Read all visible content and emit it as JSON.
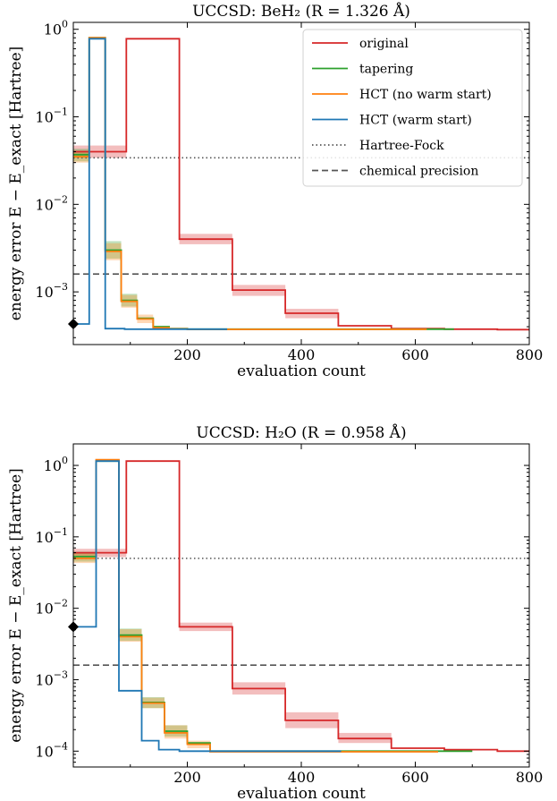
{
  "chart_data": [
    {
      "type": "line",
      "title": "UCCSD: BeH₂ (R = 1.326 Å)",
      "xlabel": "evaluation count",
      "ylabel": "energy error E − E_exact [Hartree]",
      "yscale": "log",
      "xlim": [
        0,
        800
      ],
      "ylim": [
        0.00025,
        1.2
      ],
      "x_ticks": [
        "200",
        "400",
        "600",
        "800"
      ],
      "y_ticks": [
        {
          "value": 1,
          "base": "10",
          "exp": "0"
        },
        {
          "value": 0.1,
          "base": "10",
          "exp": "−1"
        },
        {
          "value": 0.01,
          "base": "10",
          "exp": "−2"
        },
        {
          "value": 0.001,
          "base": "10",
          "exp": "−3"
        }
      ],
      "grid": false,
      "legend_position": "top-right",
      "reference_lines": [
        {
          "name": "Hartree-Fock",
          "value": 0.034,
          "style": "dotted",
          "color": "#555555"
        },
        {
          "name": "chemical precision",
          "value": 0.0016,
          "style": "dashed",
          "color": "#555555"
        }
      ],
      "start_marker": {
        "x": 0,
        "y": 0.00043
      },
      "series": [
        {
          "name": "original",
          "color": "#d62728",
          "x": [
            0,
            93,
            93,
            186,
            186,
            279,
            279,
            372,
            372,
            465,
            465,
            558,
            558,
            651,
            651,
            744,
            744,
            800
          ],
          "y": [
            0.04,
            0.04,
            0.78,
            0.78,
            0.004,
            0.004,
            0.00105,
            0.00105,
            0.00057,
            0.00057,
            0.00041,
            0.00041,
            0.00038,
            0.00038,
            0.000375,
            0.000375,
            0.00037,
            0.00037
          ],
          "band": [
            [
              0,
              93,
              0.034,
              0.047
            ],
            [
              186,
              279,
              0.0035,
              0.0046
            ],
            [
              279,
              372,
              0.0009,
              0.0012
            ],
            [
              372,
              465,
              0.0005,
              0.00064
            ]
          ]
        },
        {
          "name": "tapering",
          "color": "#2ca02c",
          "x": [
            0,
            28,
            28,
            56,
            56,
            84,
            84,
            112,
            112,
            140,
            140,
            168,
            168,
            200,
            200,
            668
          ],
          "y": [
            0.037,
            0.037,
            0.8,
            0.8,
            0.003,
            0.003,
            0.0008,
            0.0008,
            0.0005,
            0.0005,
            0.0004,
            0.0004,
            0.00038,
            0.00038,
            0.000375,
            0.000375
          ],
          "band": [
            [
              0,
              28,
              0.031,
              0.043
            ],
            [
              56,
              84,
              0.0024,
              0.0038
            ],
            [
              84,
              112,
              0.00068,
              0.00095
            ]
          ]
        },
        {
          "name": "HCT (no warm start)",
          "color": "#ff7f0e",
          "x": [
            0,
            28,
            28,
            56,
            56,
            84,
            84,
            112,
            112,
            140,
            140,
            168,
            168,
            200,
            200,
            620
          ],
          "y": [
            0.035,
            0.035,
            0.8,
            0.8,
            0.0029,
            0.0029,
            0.00078,
            0.00078,
            0.00049,
            0.00049,
            0.00039,
            0.00039,
            0.000378,
            0.000378,
            0.000373,
            0.000373
          ],
          "band": [
            [
              0,
              28,
              0.03,
              0.041
            ],
            [
              56,
              84,
              0.0023,
              0.0036
            ],
            [
              84,
              112,
              0.00066,
              0.00092
            ],
            [
              112,
              140,
              0.00044,
              0.00055
            ]
          ]
        },
        {
          "name": "HCT (warm start)",
          "color": "#1f77b4",
          "x": [
            0,
            28,
            28,
            56,
            56,
            90,
            90,
            270
          ],
          "y": [
            0.00043,
            0.00043,
            0.78,
            0.78,
            0.00038,
            0.00038,
            0.000375,
            0.000375
          ]
        }
      ]
    },
    {
      "type": "line",
      "title": "UCCSD: H₂O (R = 0.958 Å)",
      "xlabel": "evaluation count",
      "ylabel": "energy error E − E_exact [Hartree]",
      "yscale": "log",
      "xlim": [
        0,
        800
      ],
      "ylim": [
        6e-05,
        2.0
      ],
      "x_ticks": [
        "200",
        "400",
        "600",
        "800"
      ],
      "y_ticks": [
        {
          "value": 1,
          "base": "10",
          "exp": "0"
        },
        {
          "value": 0.1,
          "base": "10",
          "exp": "−1"
        },
        {
          "value": 0.01,
          "base": "10",
          "exp": "−2"
        },
        {
          "value": 0.001,
          "base": "10",
          "exp": "−3"
        },
        {
          "value": 0.0001,
          "base": "10",
          "exp": "−4"
        }
      ],
      "grid": false,
      "reference_lines": [
        {
          "name": "Hartree-Fock",
          "value": 0.05,
          "style": "dotted",
          "color": "#555555"
        },
        {
          "name": "chemical precision",
          "value": 0.0016,
          "style": "dashed",
          "color": "#555555"
        }
      ],
      "start_marker": {
        "x": 0,
        "y": 0.0055
      },
      "series": [
        {
          "name": "original",
          "color": "#d62728",
          "x": [
            0,
            93,
            93,
            186,
            186,
            279,
            279,
            372,
            372,
            465,
            465,
            558,
            558,
            651,
            651,
            744,
            744,
            800
          ],
          "y": [
            0.06,
            0.06,
            1.15,
            1.15,
            0.0055,
            0.0055,
            0.00075,
            0.00075,
            0.00027,
            0.00027,
            0.00015,
            0.00015,
            0.00011,
            0.00011,
            0.000105,
            0.000105,
            0.0001,
            0.0001
          ],
          "band": [
            [
              0,
              93,
              0.052,
              0.068
            ],
            [
              186,
              279,
              0.0048,
              0.0063
            ],
            [
              279,
              372,
              0.00062,
              0.00092
            ],
            [
              372,
              465,
              0.00021,
              0.00035
            ],
            [
              465,
              558,
              0.00013,
              0.00018
            ]
          ]
        },
        {
          "name": "tapering",
          "color": "#2ca02c",
          "x": [
            0,
            40,
            40,
            80,
            80,
            120,
            120,
            160,
            160,
            200,
            200,
            240,
            240,
            700
          ],
          "y": [
            0.053,
            0.053,
            1.15,
            1.15,
            0.0042,
            0.0042,
            0.00048,
            0.00048,
            0.00019,
            0.00019,
            0.00013,
            0.00013,
            0.0001,
            0.0001
          ],
          "band": [
            [
              0,
              40,
              0.045,
              0.062
            ],
            [
              80,
              120,
              0.0035,
              0.0052
            ],
            [
              120,
              160,
              0.0004,
              0.00057
            ],
            [
              160,
              200,
              0.00016,
              0.00023
            ]
          ]
        },
        {
          "name": "HCT (no warm start)",
          "color": "#ff7f0e",
          "x": [
            0,
            40,
            40,
            80,
            80,
            120,
            120,
            160,
            160,
            200,
            200,
            240,
            240,
            640
          ],
          "y": [
            0.05,
            0.05,
            1.2,
            1.2,
            0.004,
            0.004,
            0.00047,
            0.00047,
            0.00018,
            0.00018,
            0.000125,
            0.000125,
            9.8e-05,
            9.8e-05
          ],
          "band": [
            [
              0,
              40,
              0.043,
              0.06
            ],
            [
              80,
              120,
              0.0034,
              0.0051
            ],
            [
              120,
              160,
              0.0004,
              0.00056
            ],
            [
              160,
              200,
              0.00015,
              0.00023
            ],
            [
              200,
              240,
              0.00011,
              0.00014
            ]
          ]
        },
        {
          "name": "HCT (warm start)",
          "color": "#1f77b4",
          "x": [
            0,
            40,
            40,
            80,
            80,
            120,
            120,
            150,
            150,
            186,
            186,
            470
          ],
          "y": [
            0.0055,
            0.0055,
            1.15,
            1.15,
            0.0007,
            0.0007,
            0.00014,
            0.00014,
            0.000105,
            0.000105,
            0.0001,
            0.0001
          ]
        }
      ]
    }
  ]
}
